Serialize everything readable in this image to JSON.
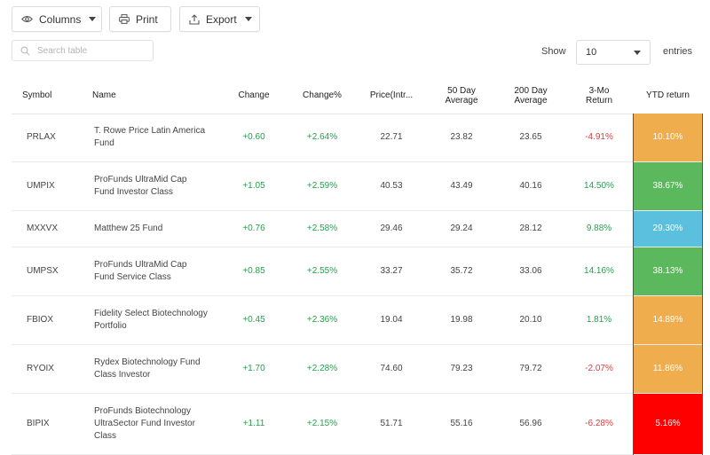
{
  "toolbar": {
    "columns_label": "Columns",
    "print_label": "Print",
    "export_label": "Export"
  },
  "search": {
    "placeholder": "Search table"
  },
  "length": {
    "show_label": "Show",
    "selected": "10",
    "entries_label": "entries"
  },
  "columns": {
    "symbol": "Symbol",
    "name": "Name",
    "change": "Change",
    "change_pct": "Change%",
    "price": "Price(Intr...",
    "avg50_l1": "50 Day",
    "avg50_l2": "Average",
    "avg200_l1": "200 Day",
    "avg200_l2": "Average",
    "ret3mo_l1": "3-Mo",
    "ret3mo_l2": "Return",
    "ytd": "YTD return"
  },
  "colors": {
    "ytd_orange": "#f0ad4e",
    "ytd_green": "#5cb85c",
    "ytd_blue": "#5bc0de",
    "ytd_red": "#ff0000",
    "positive": "#27a04d",
    "negative": "#e03b3b"
  },
  "rows": [
    {
      "symbol": "PRLAX",
      "name": "T. Rowe Price Latin America Fund",
      "change": "+0.60",
      "change_pct": "+2.64%",
      "price": "22.71",
      "avg50": "23.82",
      "avg200": "23.65",
      "ret3mo": "-4.91%",
      "ytd": "10.10%",
      "ytd_color": "#f0ad4e"
    },
    {
      "symbol": "UMPIX",
      "name": "ProFunds UltraMid Cap Fund Investor Class",
      "change": "+1.05",
      "change_pct": "+2.59%",
      "price": "40.53",
      "avg50": "43.49",
      "avg200": "40.16",
      "ret3mo": "14.50%",
      "ytd": "38.67%",
      "ytd_color": "#5cb85c"
    },
    {
      "symbol": "MXXVX",
      "name": "Matthew 25 Fund",
      "change": "+0.76",
      "change_pct": "+2.58%",
      "price": "29.46",
      "avg50": "29.24",
      "avg200": "28.12",
      "ret3mo": "9.88%",
      "ytd": "29.30%",
      "ytd_color": "#5bc0de"
    },
    {
      "symbol": "UMPSX",
      "name": "ProFunds UltraMid Cap Fund Service Class",
      "change": "+0.85",
      "change_pct": "+2.55%",
      "price": "33.27",
      "avg50": "35.72",
      "avg200": "33.06",
      "ret3mo": "14.16%",
      "ytd": "38.13%",
      "ytd_color": "#5cb85c"
    },
    {
      "symbol": "FBIOX",
      "name": "Fidelity Select Biotechnology Portfolio",
      "change": "+0.45",
      "change_pct": "+2.36%",
      "price": "19.04",
      "avg50": "19.98",
      "avg200": "20.10",
      "ret3mo": "1.81%",
      "ytd": "14.89%",
      "ytd_color": "#f0ad4e"
    },
    {
      "symbol": "RYOIX",
      "name": "Rydex Biotechnology Fund Class Investor",
      "change": "+1.70",
      "change_pct": "+2.28%",
      "price": "74.60",
      "avg50": "79.23",
      "avg200": "79.72",
      "ret3mo": "-2.07%",
      "ytd": "11.86%",
      "ytd_color": "#f0ad4e"
    },
    {
      "symbol": "BIPIX",
      "name": "ProFunds Biotechnology UltraSector Fund Investor Class",
      "change": "+1.11",
      "change_pct": "+2.15%",
      "price": "51.71",
      "avg50": "55.16",
      "avg200": "56.96",
      "ret3mo": "-6.28%",
      "ytd": "5.16%",
      "ytd_color": "#ff0000"
    }
  ]
}
